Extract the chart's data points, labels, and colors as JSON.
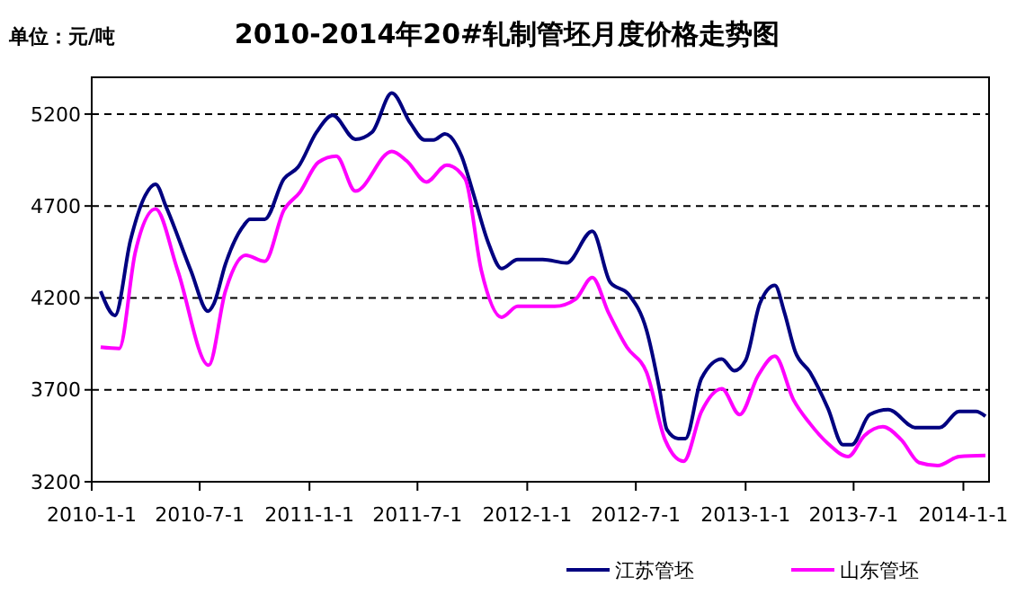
{
  "chart_data": {
    "type": "line",
    "title": "2010-2014年20#轧制管坯月度价格走势图",
    "annotations": [
      "单位：元/吨"
    ],
    "xlim": [
      "2010-01-01",
      "2014-02-13"
    ],
    "xticks": [
      {
        "value": "2010-01-01",
        "label": "2010-1-1"
      },
      {
        "value": "2010-07-01",
        "label": "2010-7-1"
      },
      {
        "value": "2011-01-01",
        "label": "2011-1-1"
      },
      {
        "value": "2011-07-01",
        "label": "2011-7-1"
      },
      {
        "value": "2012-01-01",
        "label": "2012-1-1"
      },
      {
        "value": "2012-07-01",
        "label": "2012-7-1"
      },
      {
        "value": "2013-01-01",
        "label": "2013-1-1"
      },
      {
        "value": "2013-07-01",
        "label": "2013-7-1"
      },
      {
        "value": "2014-01-01",
        "label": "2014-1-1"
      }
    ],
    "ylim": [
      3200,
      5400
    ],
    "yticks": [
      3200,
      3700,
      4200,
      4700,
      5200
    ],
    "grid": "y",
    "legend": "bottom",
    "marker": "none",
    "line_style": "solid",
    "series": [
      {
        "name": "江苏管坯",
        "color": "#000080",
        "x": [
          "2010-01-16",
          "2010-02-09",
          "2010-03-07",
          "2010-04-01",
          "2010-04-18",
          "2010-05-06",
          "2010-06-16",
          "2010-07-15",
          "2010-07-25",
          "2010-08-13",
          "2010-09-13",
          "2010-09-23",
          "2010-10-18",
          "2010-11-19",
          "2010-12-13",
          "2011-01-13",
          "2011-02-09",
          "2011-03-19",
          "2011-04-16",
          "2011-05-19",
          "2011-06-19",
          "2011-07-13",
          "2011-07-28",
          "2011-08-16",
          "2011-09-13",
          "2011-10-02",
          "2011-10-28",
          "2011-11-19",
          "2011-12-16",
          "2012-01-10",
          "2012-01-27",
          "2012-03-07",
          "2012-04-19",
          "2012-05-19",
          "2012-06-19",
          "2012-07-19",
          "2012-08-10",
          "2012-08-22",
          "2012-09-10",
          "2012-09-22",
          "2012-10-19",
          "2012-11-22",
          "2012-12-13",
          "2013-01-01",
          "2013-01-25",
          "2013-02-19",
          "2013-03-07",
          "2013-03-25",
          "2013-04-19",
          "2013-05-19",
          "2013-06-13",
          "2013-06-28",
          "2013-07-28",
          "2013-08-28",
          "2013-10-13",
          "2013-11-22",
          "2013-12-25",
          "2014-01-22",
          "2014-02-07"
        ],
        "values": [
          4236,
          4105,
          4514,
          4759,
          4818,
          4693,
          4350,
          4128,
          4170,
          4383,
          4595,
          4628,
          4628,
          4847,
          4912,
          5102,
          5193,
          5063,
          5102,
          5314,
          5151,
          5059,
          5059,
          5092,
          4971,
          4775,
          4497,
          4360,
          4409,
          4409,
          4409,
          4390,
          4563,
          4285,
          4219,
          4024,
          3697,
          3484,
          3435,
          3435,
          3762,
          3867,
          3804,
          3860,
          4170,
          4268,
          4121,
          3909,
          3795,
          3599,
          3402,
          3402,
          3565,
          3592,
          3494,
          3494,
          3582,
          3582,
          3556
        ]
      },
      {
        "name": "山东管坯",
        "color": "#ff00ff",
        "x": [
          "2010-01-16",
          "2010-02-16",
          "2010-03-15",
          "2010-04-18",
          "2010-05-25",
          "2010-07-16",
          "2010-08-13",
          "2010-09-16",
          "2010-10-18",
          "2010-11-19",
          "2010-12-16",
          "2011-01-16",
          "2011-02-15",
          "2011-03-19",
          "2011-05-19",
          "2011-06-13",
          "2011-07-16",
          "2011-08-19",
          "2011-09-19",
          "2011-10-16",
          "2011-11-19",
          "2011-12-16",
          "2012-02-16",
          "2012-03-22",
          "2012-04-19",
          "2012-05-16",
          "2012-06-16",
          "2012-07-19",
          "2012-08-19",
          "2012-09-19",
          "2012-10-19",
          "2012-11-22",
          "2012-12-22",
          "2013-01-22",
          "2013-02-19",
          "2013-03-22",
          "2013-04-19",
          "2013-05-19",
          "2013-06-22",
          "2013-07-19",
          "2013-08-19",
          "2013-09-19",
          "2013-10-19",
          "2013-11-19",
          "2013-12-25",
          "2014-02-07"
        ],
        "values": [
          3932,
          3925,
          4448,
          4684,
          4350,
          3834,
          4236,
          4432,
          4399,
          4677,
          4775,
          4938,
          4971,
          4781,
          4997,
          4945,
          4831,
          4922,
          4847,
          4350,
          4095,
          4154,
          4154,
          4193,
          4311,
          4121,
          3932,
          3795,
          3428,
          3311,
          3582,
          3706,
          3565,
          3778,
          3883,
          3647,
          3516,
          3408,
          3337,
          3451,
          3500,
          3428,
          3304,
          3288,
          3337,
          3343
        ]
      }
    ]
  }
}
